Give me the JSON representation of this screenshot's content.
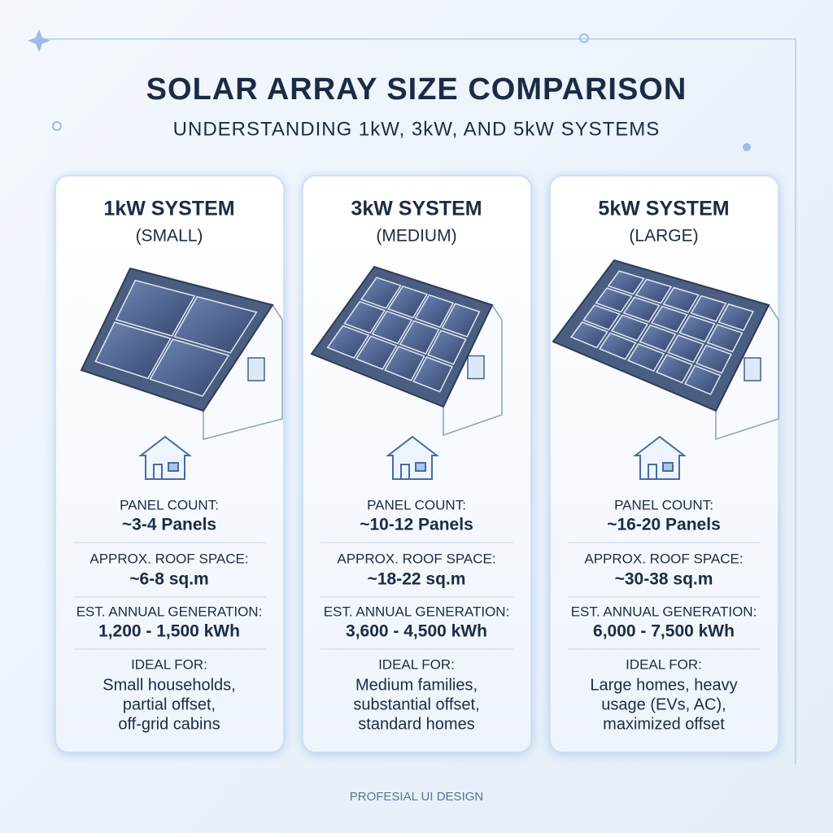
{
  "header": {
    "title": "SOLAR ARRAY SIZE COMPARISON",
    "subtitle": "UNDERSTANDING 1kW, 3kW, AND 5kW SYSTEMS"
  },
  "cards": [
    {
      "title": "1kW SYSTEM",
      "subtitle": "(SMALL)",
      "stats": [
        {
          "label": "PANEL COUNT:",
          "value": "~3-4 Panels"
        },
        {
          "label": "APPROX. ROOF SPACE:",
          "value": "~6-8 sq.m"
        },
        {
          "label": "EST. ANNUAL GENERATION:",
          "value": "1,200 - 1,500 kWh"
        }
      ],
      "ideal": {
        "label": "IDEAL FOR:",
        "lines": [
          "Small households,",
          "partial offset,",
          "off-grid cabins"
        ]
      }
    },
    {
      "title": "3kW SYSTEM",
      "subtitle": "(MEDIUM)",
      "stats": [
        {
          "label": "PANEL COUNT:",
          "value": "~10-12 Panels"
        },
        {
          "label": "APPROX. ROOF SPACE:",
          "value": "~18-22 sq.m"
        },
        {
          "label": "EST. ANNUAL GENERATION:",
          "value": "3,600 - 4,500 kWh"
        }
      ],
      "ideal": {
        "label": "IDEAL FOR:",
        "lines": [
          "Medium families,",
          "substantial offset,",
          "standard homes"
        ]
      }
    },
    {
      "title": "5kW SYSTEM",
      "subtitle": "(LARGE)",
      "stats": [
        {
          "label": "PANEL COUNT:",
          "value": "~16-20 Panels"
        },
        {
          "label": "APPROX. ROOF SPACE:",
          "value": "~30-38 sq.m"
        },
        {
          "label": "EST. ANNUAL GENERATION:",
          "value": "6,000 - 7,500 kWh"
        }
      ],
      "ideal": {
        "label": "IDEAL FOR:",
        "lines": [
          "Large homes, heavy",
          "usage (EVs, AC),",
          "maximized offset"
        ]
      }
    }
  ],
  "footer": {
    "text": "PROFESIAL UI DESIGN"
  }
}
